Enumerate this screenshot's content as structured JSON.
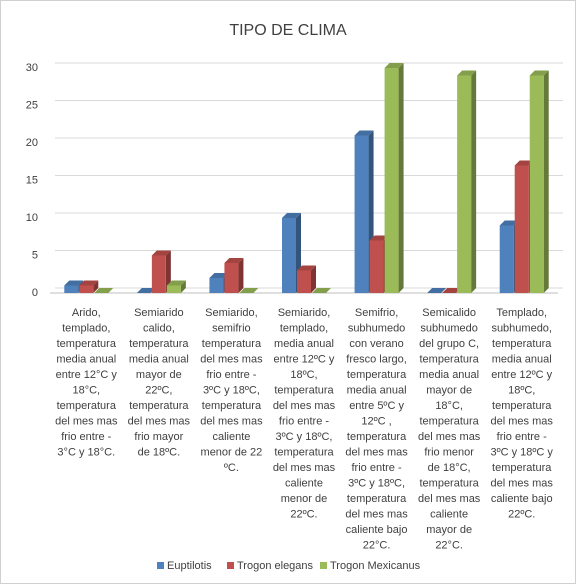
{
  "chart_data": {
    "type": "bar",
    "title": "TIPO DE CLIMA",
    "categories": [
      [
        "Arido,",
        "templado,",
        "temperatura",
        "media anual",
        "entre 12°C y",
        "18°C,",
        "temperatura",
        "del mes mas",
        "frio entre -",
        "3°C y 18°C."
      ],
      [
        "Semiarido",
        "calido,",
        "temperatura",
        "media anual",
        "mayor de",
        "22ºC,",
        "temperatura",
        "del mes mas",
        "frio mayor",
        "de 18ºC."
      ],
      [
        "Semiarido,",
        "semifrio",
        "temperatura",
        "del mes mas",
        "frio entre -",
        "3ºC y 18ºC,",
        "temperatura",
        "del mes mas",
        "caliente",
        "menor de 22",
        "ºC."
      ],
      [
        "Semiarido,",
        "templado,",
        "media anual",
        "entre 12ºC y",
        "18ºC,",
        "temperatura",
        "del mes mas",
        "frio entre -",
        "3ºC y 18ºC,",
        "temperatura",
        "del mes mas",
        "caliente",
        "menor de",
        "22ºC."
      ],
      [
        "Semifrio,",
        "subhumedo",
        "con verano",
        "fresco largo,",
        "temperatura",
        "media anual",
        "entre 5ºC y",
        "12ºC ,",
        "temperatura",
        "del mes mas",
        "frio entre -",
        "3ºC y 18ºC,",
        "temperatura",
        "del mes mas",
        "caliente bajo",
        "22°C."
      ],
      [
        "Semicalido",
        "subhumedo",
        "del grupo C,",
        "temperatura",
        "media anual",
        "mayor de",
        "18°C,",
        "temperatura",
        "del mes mas",
        "frio menor",
        "de 18°C,",
        "temperatura",
        "del mes mas",
        "caliente",
        "mayor de",
        "22°C."
      ],
      [
        "Templado,",
        "subhumedo,",
        "temperatura",
        "media anual",
        "entre 12ºC y",
        "18ºC,",
        "temperatura",
        "del mes mas",
        "frio entre -",
        "3ºC y 18ºC y",
        "temperatura",
        "del mes mas",
        "caliente bajo",
        "22ºC."
      ]
    ],
    "series": [
      {
        "name": "Euptilotis",
        "color": "#4f81bd",
        "values": [
          1,
          0,
          2,
          10,
          21,
          0,
          9
        ]
      },
      {
        "name": "Trogon elegans",
        "color": "#c0504d",
        "values": [
          1,
          5,
          4,
          3,
          7,
          0,
          17
        ]
      },
      {
        "name": "Trogon Mexicanus",
        "color": "#9bbb59",
        "values": [
          0,
          1,
          0,
          0,
          30,
          29,
          29
        ]
      }
    ],
    "ylim": [
      0,
      30
    ],
    "yticks": [
      0,
      5,
      10,
      15,
      20,
      25,
      30
    ],
    "grid": true,
    "legend": "bottom"
  }
}
